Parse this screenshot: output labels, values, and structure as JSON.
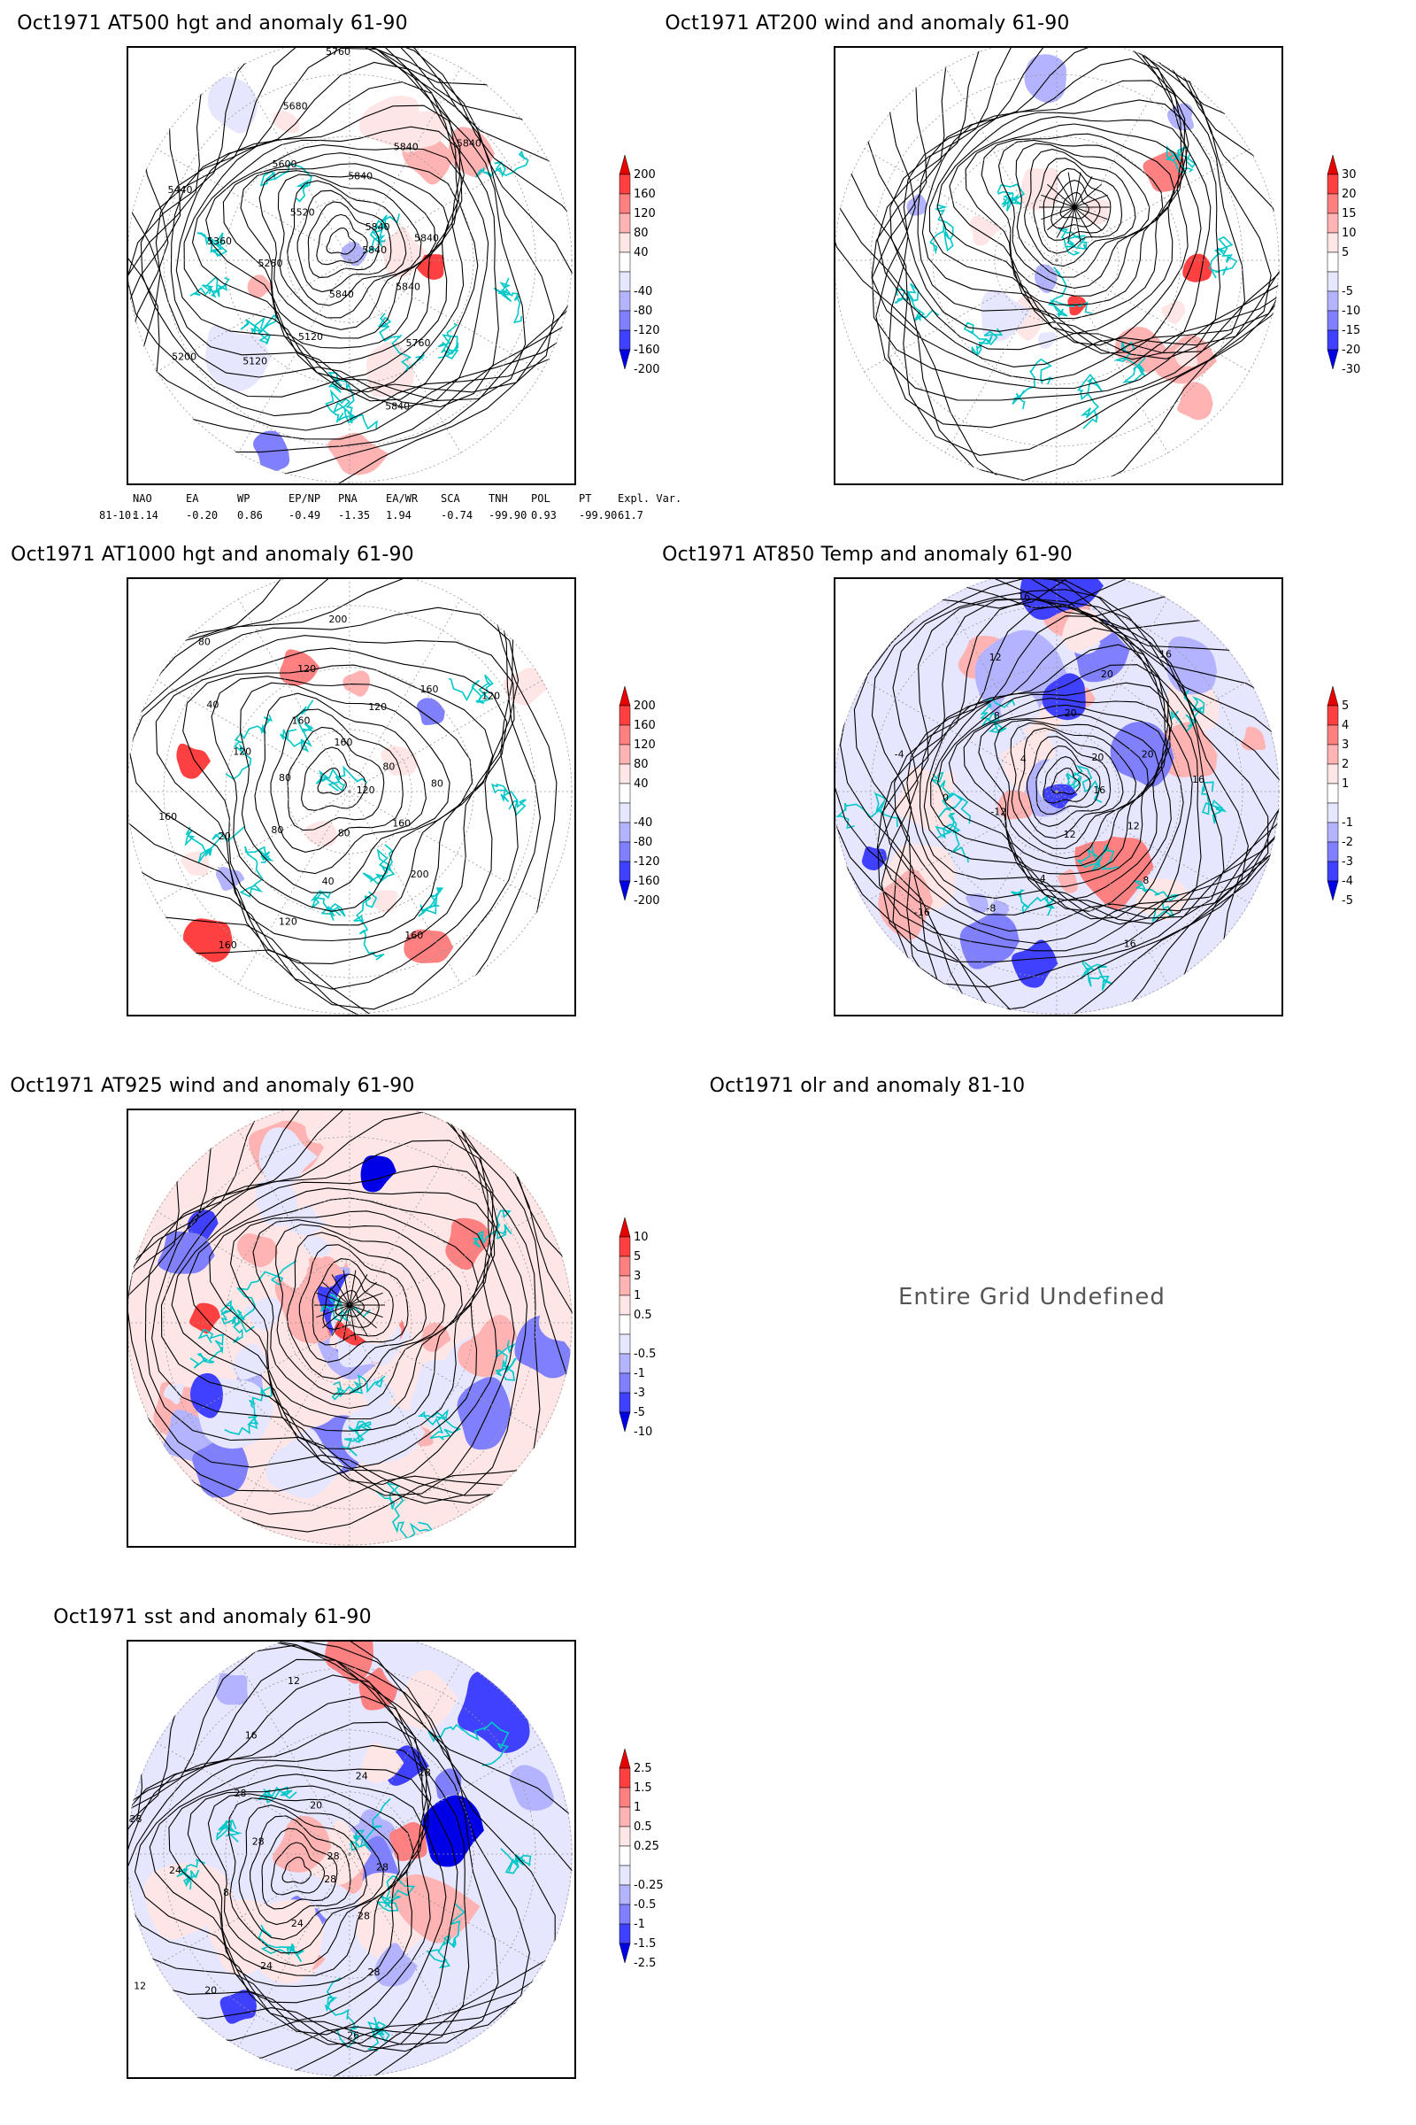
{
  "panels": [
    {
      "id": "p500",
      "title": "Oct1971 AT500 hgt and anomaly 61-90",
      "contour_labels": [
        "5840",
        "5840",
        "5760",
        "5840",
        "5840",
        "5120",
        "5120",
        "5200",
        "5280",
        "5360",
        "5440",
        "5520",
        "5600",
        "5680",
        "5760",
        "5840",
        "5840",
        "5840",
        "5840",
        "5840"
      ],
      "colorbar": [
        "200",
        "160",
        "120",
        "80",
        "40",
        "-40",
        "-80",
        "-120",
        "-160",
        "-200"
      ]
    },
    {
      "id": "p200",
      "title": "Oct1971 AT200 wind and anomaly 61-90",
      "colorbar": [
        "30",
        "20",
        "15",
        "10",
        "5",
        "-5",
        "-10",
        "-15",
        "-20",
        "-30"
      ]
    },
    {
      "id": "p1000",
      "title": "Oct1971 AT1000 hgt and anomaly 61-90",
      "contour_labels": [
        "120",
        "160",
        "200",
        "160",
        "80",
        "40",
        "120",
        "160",
        "80",
        "20",
        "160",
        "80",
        "120",
        "40",
        "80",
        "160",
        "120",
        "200",
        "160",
        "120",
        "160",
        "120",
        "80",
        "80"
      ],
      "colorbar": [
        "200",
        "160",
        "120",
        "80",
        "40",
        "-40",
        "-80",
        "-120",
        "-160",
        "-200"
      ]
    },
    {
      "id": "p850",
      "title": "Oct1971 AT850 Temp and anomaly 61-90",
      "contour_labels": [
        "16",
        "12",
        "8",
        "16",
        "12",
        "4",
        "-8",
        "-16",
        "-12",
        "0",
        "-4",
        "4",
        "8",
        "12",
        "16",
        "20",
        "20",
        "16",
        "20",
        "20",
        "16"
      ],
      "colorbar": [
        "5",
        "4",
        "3",
        "2",
        "1",
        "-1",
        "-2",
        "-3",
        "-4",
        "-5"
      ]
    },
    {
      "id": "p925",
      "title": "Oct1971 AT925 wind and anomaly 61-90",
      "colorbar": [
        "10",
        "5",
        "3",
        "1",
        "0.5",
        "-0.5",
        "-1",
        "-3",
        "-5",
        "-10"
      ]
    },
    {
      "id": "polr",
      "title": "Oct1971 olr and anomaly 81-10",
      "message": "Entire Grid Undefined"
    },
    {
      "id": "psst",
      "title": "Oct1971 sst and anomaly 61-90",
      "contour_labels": [
        "28",
        "28",
        "28",
        "26",
        "24",
        "24",
        "20",
        "12",
        "8",
        "24",
        "28",
        "28",
        "28",
        "16",
        "12",
        "20",
        "24",
        "28",
        "28",
        "28"
      ],
      "colorbar": [
        "2.5",
        "1.5",
        "1",
        "0.5",
        "0.25",
        "-0.25",
        "-0.5",
        "-1",
        "-1.5",
        "-2.5"
      ]
    }
  ],
  "teleconnection": {
    "headers": [
      "NAO",
      "EA",
      "WP",
      "EP/NP",
      "PNA",
      "EA/WR",
      "SCA",
      "TNH",
      "POL",
      "PT",
      "Expl. Var."
    ],
    "row_label": "81-10:",
    "values": [
      "1.14",
      "-0.20",
      "0.86",
      "-0.49",
      "-1.35",
      "1.94",
      "-0.74",
      "-99.90",
      "0.93",
      "-99.90",
      "61.7"
    ]
  },
  "colors": {
    "coast": "#00c8c8",
    "pos_scale": [
      "#ffe6e6",
      "#ffb3b3",
      "#ff8080",
      "#ff4040",
      "#e60000"
    ],
    "neg_scale": [
      "#e6e6ff",
      "#b3b3ff",
      "#8080ff",
      "#4040ff",
      "#0000e6"
    ],
    "contour": "#000000",
    "grid": "#999999"
  }
}
